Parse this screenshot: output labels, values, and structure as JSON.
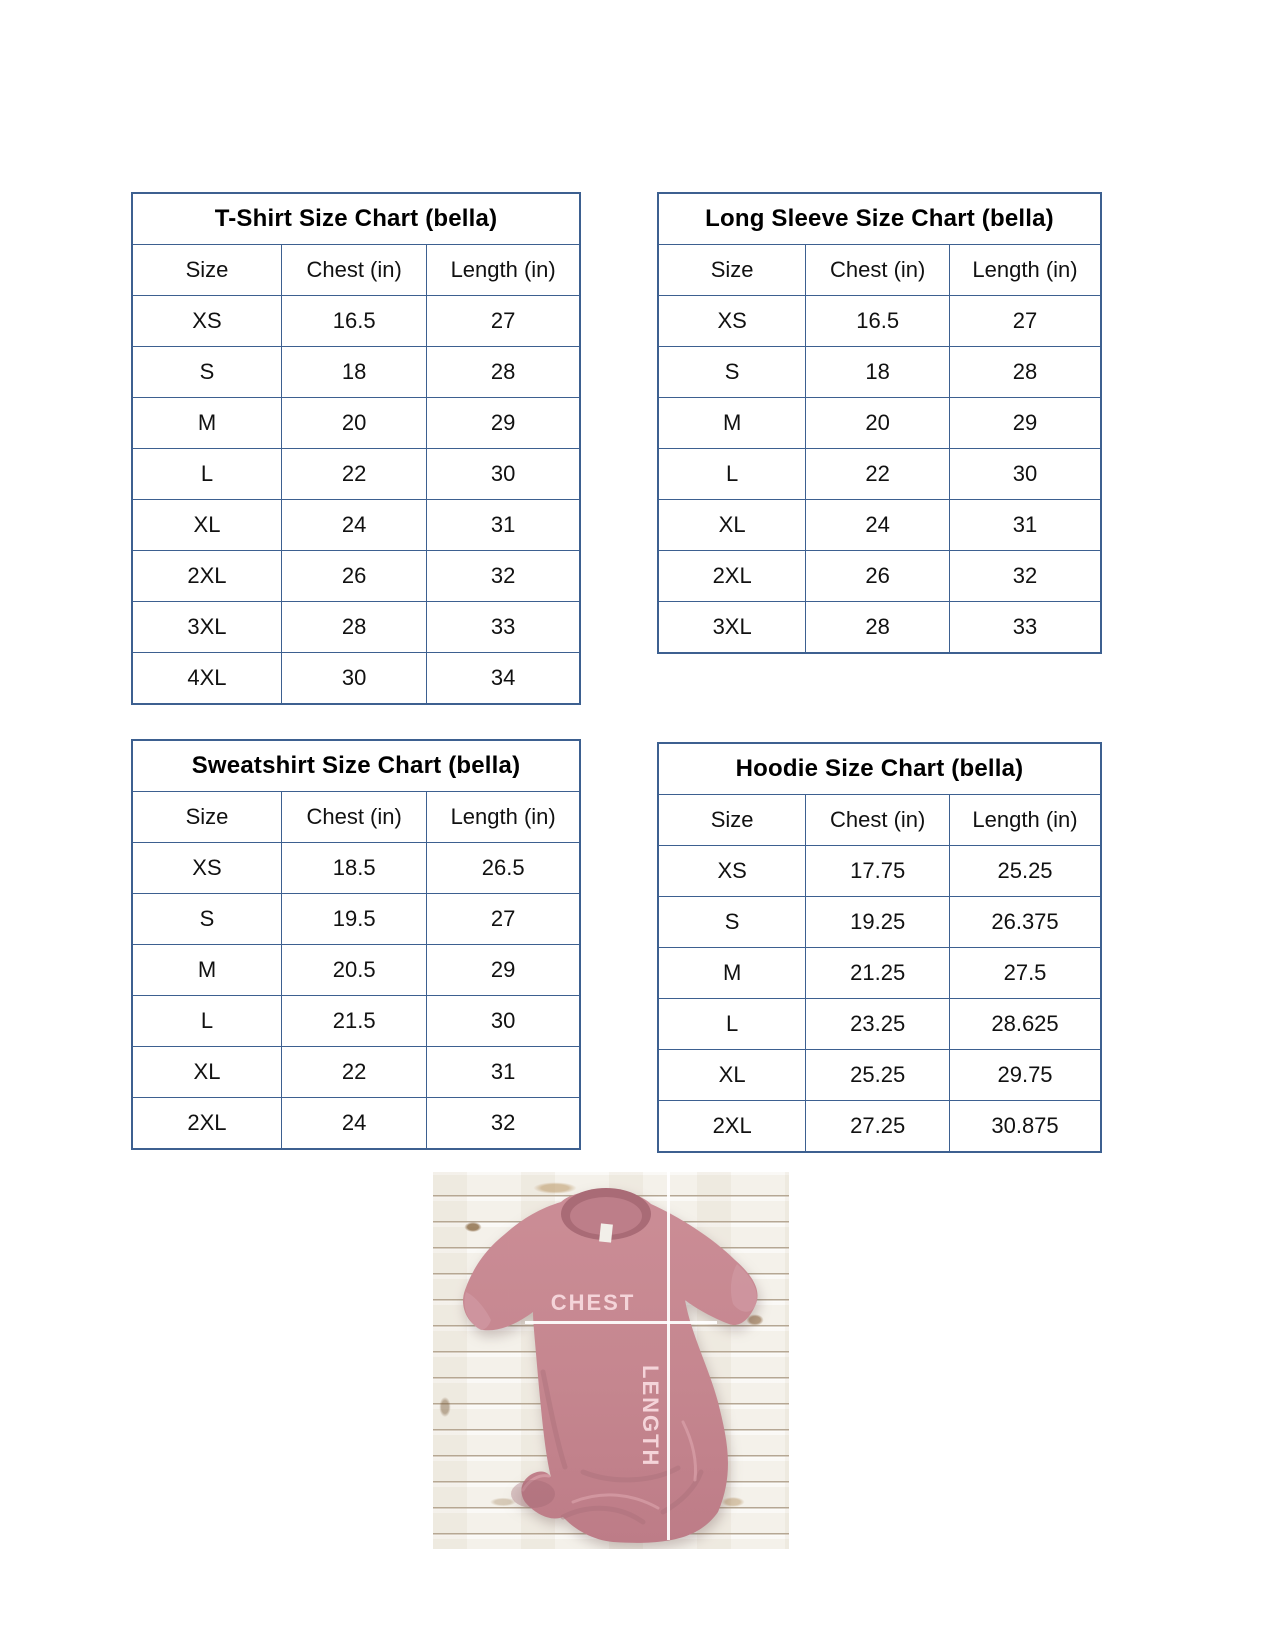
{
  "colors": {
    "table_border": "#3d6090",
    "title_text": "#000000",
    "cell_text": "#111111",
    "shirt_mauve": "#c5868f",
    "shirt_shadow": "#a86d79",
    "measure_line": "#ffffff",
    "measure_label_pink": "#f7d8dd",
    "wood_base": "#f4f1ea"
  },
  "tables": [
    {
      "id": "tshirt",
      "title": "T-Shirt Size Chart  (bella)",
      "headers": [
        "Size",
        "Chest (in)",
        "Length (in)"
      ],
      "rows": [
        [
          "XS",
          "16.5",
          "27"
        ],
        [
          "S",
          "18",
          "28"
        ],
        [
          "M",
          "20",
          "29"
        ],
        [
          "L",
          "22",
          "30"
        ],
        [
          "XL",
          "24",
          "31"
        ],
        [
          "2XL",
          "26",
          "32"
        ],
        [
          "3XL",
          "28",
          "33"
        ],
        [
          "4XL",
          "30",
          "34"
        ]
      ]
    },
    {
      "id": "longsleeve",
      "title": "Long Sleeve Size Chart  (bella)",
      "headers": [
        "Size",
        "Chest (in)",
        "Length (in)"
      ],
      "rows": [
        [
          "XS",
          "16.5",
          "27"
        ],
        [
          "S",
          "18",
          "28"
        ],
        [
          "M",
          "20",
          "29"
        ],
        [
          "L",
          "22",
          "30"
        ],
        [
          "XL",
          "24",
          "31"
        ],
        [
          "2XL",
          "26",
          "32"
        ],
        [
          "3XL",
          "28",
          "33"
        ]
      ]
    },
    {
      "id": "sweatshirt",
      "title": "Sweatshirt Size Chart (bella)",
      "headers": [
        "Size",
        "Chest (in)",
        "Length (in)"
      ],
      "rows": [
        [
          "XS",
          "18.5",
          "26.5"
        ],
        [
          "S",
          "19.5",
          "27"
        ],
        [
          "M",
          "20.5",
          "29"
        ],
        [
          "L",
          "21.5",
          "30"
        ],
        [
          "XL",
          "22",
          "31"
        ],
        [
          "2XL",
          "24",
          "32"
        ]
      ]
    },
    {
      "id": "hoodie",
      "title": "Hoodie Size Chart (bella)",
      "headers": [
        "Size",
        "Chest (in)",
        "Length (in)"
      ],
      "rows": [
        [
          "XS",
          "17.75",
          "25.25"
        ],
        [
          "S",
          "19.25",
          "26.375"
        ],
        [
          "M",
          "21.25",
          "27.5"
        ],
        [
          "L",
          "23.25",
          "28.625"
        ],
        [
          "XL",
          "25.25",
          "29.75"
        ],
        [
          "2XL",
          "27.25",
          "30.875"
        ]
      ]
    }
  ],
  "photo": {
    "chest_label": "CHEST",
    "length_label": "LENGTH"
  }
}
